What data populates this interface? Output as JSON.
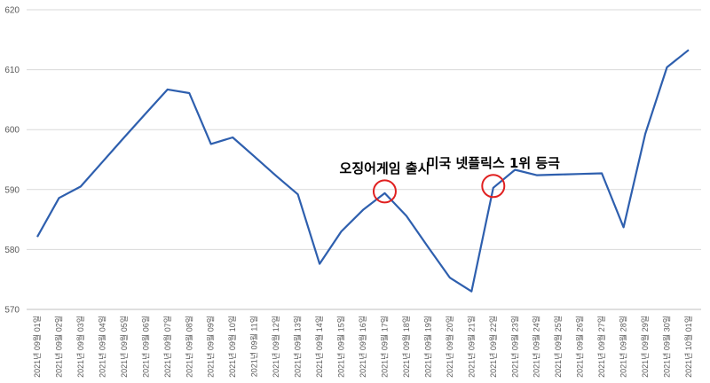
{
  "chart_data": {
    "type": "line",
    "title": "",
    "xlabel": "",
    "ylabel": "",
    "ylim": [
      570,
      620
    ],
    "yticks": [
      570,
      580,
      590,
      600,
      610,
      620
    ],
    "grid": "horizontal",
    "legend": "none",
    "x": [
      "2021년 09월 01일",
      "2021년 09월 02일",
      "2021년 09월 03일",
      "2021년 09월 04일",
      "2021년 09월 05일",
      "2021년 09월 06일",
      "2021년 09월 07일",
      "2021년 09월 08일",
      "2021년 09월 09일",
      "2021년 09월 10일",
      "2021년 09월 11일",
      "2021년 09월 12일",
      "2021년 09월 13일",
      "2021년 09월 14일",
      "2021년 09월 15일",
      "2021년 09월 16일",
      "2021년 09월 17일",
      "2021년 09월 18일",
      "2021년 09월 19일",
      "2021년 09월 20일",
      "2021년 09월 21일",
      "2021년 09월 22일",
      "2021년 09월 23일",
      "2021년 09월 24일",
      "2021년 09월 25일",
      "2021년 09월 26일",
      "2021년 09월 27일",
      "2021년 09월 28일",
      "2021년 09월 29일",
      "2021년 09월 30일",
      "2021년 10월 01일"
    ],
    "values": [
      582.1,
      588.6,
      590.5,
      594.6,
      598.7,
      602.7,
      606.7,
      606.1,
      597.6,
      598.7,
      595.5,
      592.3,
      589.2,
      577.6,
      583.0,
      586.6,
      589.4,
      585.6,
      580.4,
      575.3,
      573.0,
      590.3,
      593.3,
      592.4,
      592.5,
      592.6,
      592.7,
      583.7,
      599.3,
      610.4,
      613.3
    ],
    "line_color": "#2e5fae",
    "annotations": [
      {
        "text": "오징어게임 출시",
        "x_index": 16,
        "circle_color": "#e02020"
      },
      {
        "text": "미국 넷플릭스 1위 등극",
        "x_index": 21,
        "circle_color": "#e02020"
      }
    ]
  }
}
